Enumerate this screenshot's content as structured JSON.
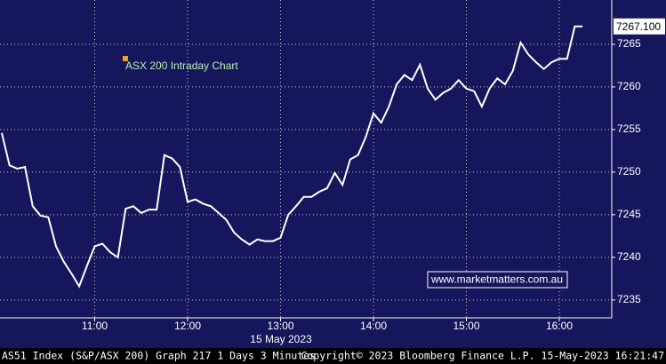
{
  "chart_data": {
    "type": "line",
    "annotation": "ASX 200 Intraday Chart",
    "watermark": "www.marketmatters.com.au",
    "date_label": "15 May 2023",
    "footer": {
      "left": "AS51 Index (S&P/ASX 200) Graph 217 1 Days 3 Minutes",
      "center": "Copyright© 2023 Bloomberg Finance L.P.",
      "right": "15-May-2023 16:21:47"
    },
    "categories": [
      null,
      null,
      null,
      null,
      null,
      null,
      null,
      null,
      null,
      null,
      null,
      null,
      "11:00",
      null,
      null,
      null,
      null,
      null,
      null,
      null,
      null,
      null,
      null,
      null,
      "12:00",
      null,
      null,
      null,
      null,
      null,
      null,
      null,
      null,
      null,
      null,
      null,
      "13:00",
      null,
      null,
      null,
      null,
      null,
      null,
      null,
      null,
      null,
      null,
      null,
      "14:00",
      null,
      null,
      null,
      null,
      null,
      null,
      null,
      null,
      null,
      null,
      null,
      "15:00",
      null,
      null,
      null,
      null,
      null,
      null,
      null,
      null,
      null,
      null,
      null,
      "16:00",
      null,
      null,
      null
    ],
    "series": [
      {
        "color": "#ffffff",
        "values": [
          7254.6,
          7250.8,
          7250.4,
          7250.6,
          7246.0,
          7244.9,
          7244.7,
          7241.3,
          7239.5,
          7238.1,
          7236.6,
          7239.0,
          7241.3,
          7241.6,
          7240.6,
          7240.0,
          7245.7,
          7246.0,
          7245.2,
          7245.6,
          7245.6,
          7252.0,
          7251.6,
          7250.6,
          7246.5,
          7246.8,
          7246.3,
          7246.0,
          7245.2,
          7244.4,
          7242.9,
          7242.1,
          7241.5,
          7242.1,
          7241.9,
          7241.9,
          7242.3,
          7245.0,
          7246.0,
          7247.1,
          7247.1,
          7247.7,
          7248.1,
          7249.9,
          7248.5,
          7251.5,
          7252.0,
          7254.1,
          7256.9,
          7255.8,
          7257.7,
          7260.3,
          7261.4,
          7260.8,
          7262.6,
          7259.8,
          7258.5,
          7259.3,
          7259.8,
          7260.8,
          7259.8,
          7259.5,
          7257.7,
          7259.8,
          7261.0,
          7260.3,
          7261.9,
          7265.2,
          7263.8,
          7262.9,
          7262.1,
          7262.9,
          7263.3,
          7263.3,
          7267.1,
          7267.1
        ],
        "value_labels": [
          null,
          null,
          null,
          null,
          null,
          null,
          null,
          null,
          null,
          null,
          null,
          null,
          null,
          null,
          null,
          null,
          null,
          null,
          null,
          null,
          null,
          null,
          null,
          null,
          null,
          null,
          null,
          null,
          null,
          null,
          null,
          null,
          null,
          null,
          null,
          null,
          null,
          null,
          null,
          null,
          null,
          null,
          null,
          null,
          null,
          null,
          null,
          null,
          null,
          null,
          null,
          null,
          null,
          null,
          null,
          null,
          null,
          null,
          null,
          null,
          null,
          null,
          null,
          null,
          null,
          null,
          null,
          null,
          null,
          null,
          null,
          null,
          null,
          null,
          null,
          "7267.100"
        ]
      }
    ],
    "ylim": [
      7232.9,
      7270.2
    ],
    "yticks": [
      7235,
      7240,
      7245,
      7250,
      7255,
      7260,
      7265
    ],
    "grid": true,
    "background": "#16165c"
  }
}
